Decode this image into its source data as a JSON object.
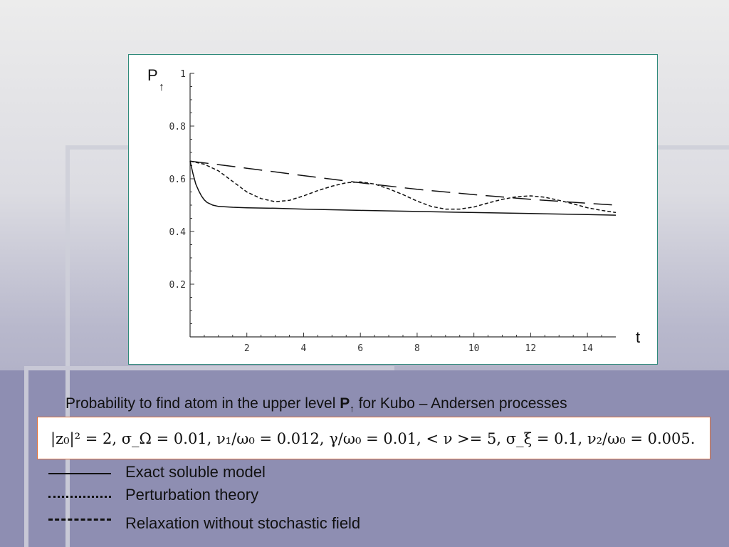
{
  "chart_data": {
    "type": "line",
    "xlabel": "t",
    "ylabel_main": "P",
    "ylabel_sub": "↑",
    "xlim": [
      0,
      15
    ],
    "ylim": [
      0,
      1
    ],
    "xticks": [
      2,
      4,
      6,
      8,
      10,
      12,
      14
    ],
    "yticks": [
      0.2,
      0.4,
      0.6,
      0.8,
      1
    ],
    "xtick_labels": [
      "2",
      "4",
      "6",
      "8",
      "10",
      "12",
      "14"
    ],
    "ytick_labels": [
      "0.2",
      "0.4",
      "0.6",
      "0.8",
      "1"
    ],
    "series": [
      {
        "style": "solid",
        "x": [
          0,
          0.1,
          0.2,
          0.3,
          0.4,
          0.5,
          0.6,
          0.8,
          1,
          1.5,
          2,
          3,
          4,
          6,
          8,
          10,
          12,
          14,
          15
        ],
        "y": [
          0.667,
          0.62,
          0.58,
          0.555,
          0.535,
          0.52,
          0.51,
          0.5,
          0.495,
          0.492,
          0.49,
          0.488,
          0.485,
          0.48,
          0.476,
          0.472,
          0.468,
          0.464,
          0.462
        ]
      },
      {
        "style": "dotted",
        "x": [
          0,
          0.5,
          1,
          1.5,
          2,
          2.5,
          3,
          3.5,
          4,
          4.5,
          5,
          5.5,
          6,
          6.5,
          7,
          7.5,
          8,
          8.5,
          9,
          9.5,
          10,
          10.5,
          11,
          11.5,
          12,
          12.5,
          13,
          13.5,
          14,
          14.5,
          15
        ],
        "y": [
          0.667,
          0.655,
          0.63,
          0.59,
          0.55,
          0.525,
          0.513,
          0.518,
          0.535,
          0.555,
          0.572,
          0.585,
          0.588,
          0.58,
          0.562,
          0.54,
          0.515,
          0.495,
          0.485,
          0.485,
          0.493,
          0.508,
          0.522,
          0.532,
          0.535,
          0.53,
          0.518,
          0.505,
          0.49,
          0.48,
          0.472
        ]
      },
      {
        "style": "dashed",
        "x": [
          0,
          2,
          4,
          6,
          8,
          10,
          12,
          14,
          15
        ],
        "y": [
          0.667,
          0.64,
          0.612,
          0.585,
          0.56,
          0.54,
          0.522,
          0.507,
          0.5
        ]
      }
    ]
  },
  "caption": {
    "text": "Probability  to find atom in the upper level",
    "symbol": "P",
    "symbol_sub": "↑",
    "text_after": " for Kubo – Andersen processes"
  },
  "params": {
    "text": "|z₀|² = 2, σ_Ω = 0.01, ν₁/ω₀ = 0.012, γ/ω₀ = 0.01, < ν >= 5, σ_ξ = 0.1, ν₂/ω₀ = 0.005."
  },
  "legend": [
    {
      "style": "solid",
      "label": "Exact soluble model"
    },
    {
      "style": "dotted",
      "label": "Perturbation theory"
    },
    {
      "style": "dashed",
      "label": "Relaxation without stochastic field"
    }
  ]
}
